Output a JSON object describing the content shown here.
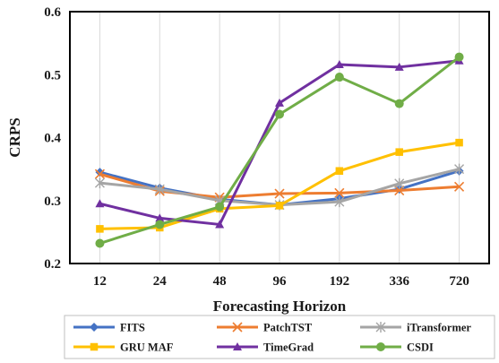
{
  "chart_data": {
    "type": "line",
    "xlabel": "Forecasting Horizon",
    "ylabel": "CRPS",
    "categories": [
      "12",
      "24",
      "48",
      "96",
      "192",
      "336",
      "720"
    ],
    "ylim": [
      0.2,
      0.6
    ],
    "yticks": [
      0.2,
      0.3,
      0.4,
      0.5,
      0.6
    ],
    "ytick_labels": [
      "0.2",
      "0.3",
      "0.4",
      "0.5",
      "0.6"
    ],
    "grid": "vertical",
    "legend_position": "bottom",
    "series": [
      {
        "name": "FITS",
        "color": "#4472C4",
        "marker": "diamond",
        "values": [
          0.345,
          0.32,
          0.302,
          0.293,
          0.303,
          0.318,
          0.347
        ]
      },
      {
        "name": "PatchTST",
        "color": "#ED7D31",
        "marker": "x",
        "values": [
          0.342,
          0.315,
          0.305,
          0.311,
          0.312,
          0.316,
          0.322
        ]
      },
      {
        "name": "iTransformer",
        "color": "#A5A5A5",
        "marker": "asterisk",
        "values": [
          0.328,
          0.318,
          0.3,
          0.293,
          0.298,
          0.327,
          0.35
        ]
      },
      {
        "name": "GRU MAF",
        "color": "#FFC000",
        "marker": "square",
        "values": [
          0.255,
          0.257,
          0.287,
          0.292,
          0.347,
          0.377,
          0.392
        ]
      },
      {
        "name": "TimeGrad",
        "color": "#7030A0",
        "marker": "triangle",
        "values": [
          0.295,
          0.272,
          0.262,
          0.455,
          0.516,
          0.512,
          0.522
        ]
      },
      {
        "name": "CSDI",
        "color": "#70AD47",
        "marker": "circle",
        "values": [
          0.232,
          0.262,
          0.29,
          0.437,
          0.496,
          0.454,
          0.528
        ]
      }
    ]
  }
}
